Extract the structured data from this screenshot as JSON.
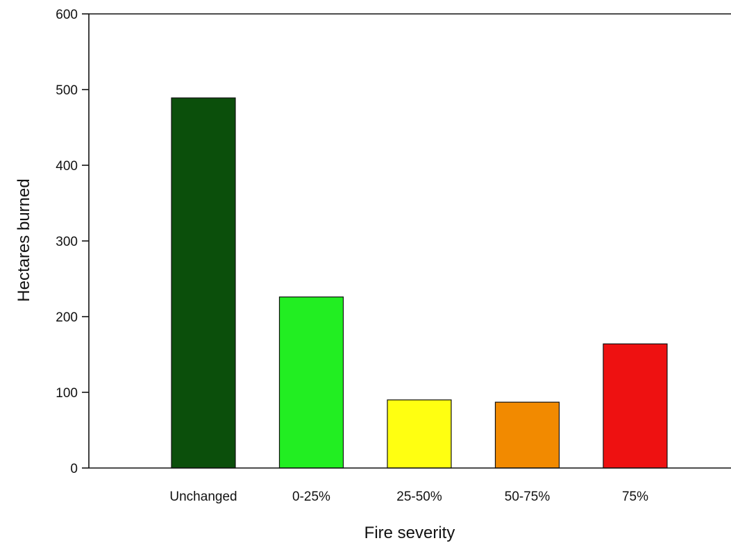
{
  "chart_data": {
    "type": "bar",
    "categories": [
      "Unchanged",
      "0-25%",
      "25-50%",
      "50-75%",
      "75%"
    ],
    "values": [
      489,
      226,
      90,
      87,
      164
    ],
    "colors": [
      "#0b4f0b",
      "#22ee22",
      "#ffff11",
      "#f28a00",
      "#ee1111"
    ],
    "title": "",
    "xlabel": "Fire severity",
    "ylabel": "Hectares burned",
    "ylim": [
      0,
      600
    ],
    "yticks": [
      0,
      100,
      200,
      300,
      400,
      500,
      600
    ],
    "grid": false,
    "legend": "none"
  }
}
